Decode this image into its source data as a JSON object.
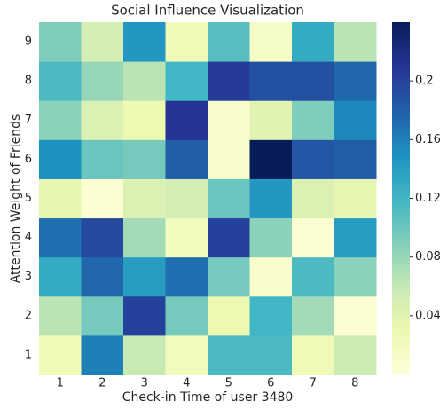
{
  "chart_data": {
    "type": "heatmap",
    "title": "Social Influence Visualization",
    "x_label": "Check-in Time of user 3480",
    "y_label": "Attention Weight of Friends",
    "x": [
      1,
      2,
      3,
      4,
      5,
      6,
      7,
      8
    ],
    "y": [
      1,
      2,
      3,
      4,
      5,
      6,
      7,
      8,
      9
    ],
    "values": [
      [
        0.025,
        0.16,
        0.06,
        0.02,
        0.115,
        0.115,
        0.025,
        0.055
      ],
      [
        0.065,
        0.095,
        0.2,
        0.095,
        0.03,
        0.12,
        0.075,
        0.005
      ],
      [
        0.13,
        0.175,
        0.14,
        0.17,
        0.095,
        0.01,
        0.115,
        0.085
      ],
      [
        0.17,
        0.195,
        0.075,
        0.02,
        0.2,
        0.085,
        0.005,
        0.14
      ],
      [
        0.035,
        0.005,
        0.045,
        0.05,
        0.1,
        0.145,
        0.045,
        0.035
      ],
      [
        0.15,
        0.1,
        0.095,
        0.18,
        0.01,
        0.24,
        0.185,
        0.18
      ],
      [
        0.085,
        0.045,
        0.03,
        0.21,
        0.01,
        0.04,
        0.09,
        0.155
      ],
      [
        0.115,
        0.08,
        0.065,
        0.12,
        0.205,
        0.19,
        0.19,
        0.175
      ],
      [
        0.09,
        0.05,
        0.145,
        0.025,
        0.11,
        0.015,
        0.13,
        0.065
      ]
    ],
    "colormap": "YlGnBu",
    "clim": [
      0,
      0.24
    ],
    "colorbar_ticks": [
      0.04,
      0.08,
      0.12,
      0.16,
      0.2
    ]
  }
}
